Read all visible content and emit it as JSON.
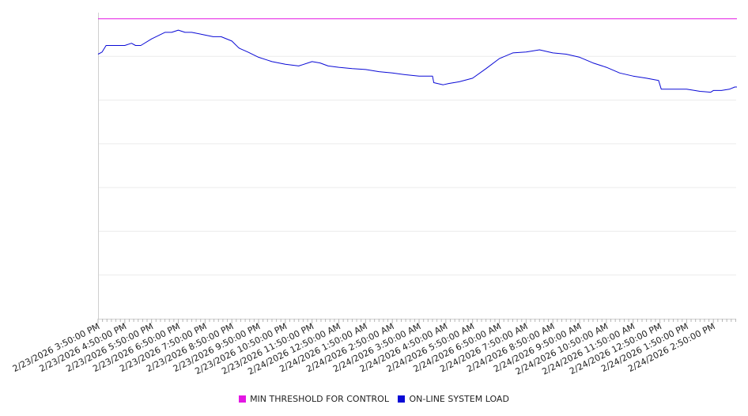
{
  "chart_data": {
    "type": "line",
    "title": "",
    "xlabel": "",
    "ylabel": "",
    "grid": true,
    "legend_position": "bottom",
    "x_tick_labels": [
      "2/23/2026 3:50:00 PM",
      "2/23/2026 4:50:00 PM",
      "2/23/2026 5:50:00 PM",
      "2/23/2026 6:50:00 PM",
      "2/23/2026 7:50:00 PM",
      "2/23/2026 8:50:00 PM",
      "2/23/2026 9:50:00 PM",
      "2/23/2026 10:50:00 PM",
      "2/23/2026 11:50:00 PM",
      "2/24/2026 12:50:00 AM",
      "2/24/2026 1:50:00 AM",
      "2/24/2026 2:50:00 AM",
      "2/24/2026 3:50:00 AM",
      "2/24/2026 4:50:00 AM",
      "2/24/2026 5:50:00 AM",
      "2/24/2026 6:50:00 AM",
      "2/24/2026 7:50:00 AM",
      "2/24/2026 8:50:00 AM",
      "2/24/2026 9:50:00 AM",
      "2/24/2026 10:50:00 AM",
      "2/24/2026 11:50:00 AM",
      "2/24/2026 12:50:00 PM",
      "2/24/2026 1:50:00 PM",
      "2/24/2026 2:50:00 PM"
    ],
    "y_range": [
      0,
      7
    ],
    "y_gridlines": [
      1,
      2,
      3,
      4,
      5,
      6,
      7
    ],
    "series": [
      {
        "name": "MIN THRESHOLD FOR CONTROL",
        "color": "#e317e3",
        "x": [
          0,
          23.88
        ],
        "y": [
          6.86,
          6.86
        ]
      },
      {
        "name": "ON-LINE SYSTEM LOAD",
        "color": "#0a0ad6",
        "x": [
          0,
          0.15,
          0.3,
          0.5,
          1.0,
          1.25,
          1.4,
          1.6,
          2.0,
          2.5,
          2.75,
          3.0,
          3.25,
          3.5,
          3.9,
          4.3,
          4.6,
          5.0,
          5.25,
          5.3,
          5.6,
          6.0,
          6.3,
          6.5,
          7.0,
          7.5,
          8.0,
          8.3,
          8.6,
          9.0,
          9.5,
          10.0,
          10.5,
          11.0,
          11.5,
          12.0,
          12.5,
          12.55,
          12.9,
          13.1,
          13.5,
          14.0,
          14.5,
          15.0,
          15.5,
          16.0,
          16.5,
          17.0,
          17.5,
          18.0,
          18.5,
          19.0,
          19.5,
          20.0,
          20.5,
          20.95,
          21.05,
          21.5,
          22.0,
          22.3,
          22.5,
          22.9,
          23.0,
          23.3,
          23.6,
          23.8,
          23.88
        ],
        "y": [
          6.05,
          6.1,
          6.25,
          6.25,
          6.25,
          6.3,
          6.25,
          6.25,
          6.4,
          6.55,
          6.55,
          6.6,
          6.55,
          6.55,
          6.5,
          6.45,
          6.45,
          6.35,
          6.2,
          6.18,
          6.1,
          5.98,
          5.92,
          5.88,
          5.82,
          5.78,
          5.88,
          5.85,
          5.78,
          5.75,
          5.72,
          5.7,
          5.65,
          5.62,
          5.58,
          5.55,
          5.55,
          5.4,
          5.35,
          5.38,
          5.42,
          5.5,
          5.72,
          5.95,
          6.08,
          6.1,
          6.15,
          6.08,
          6.05,
          5.98,
          5.85,
          5.75,
          5.62,
          5.55,
          5.5,
          5.45,
          5.25,
          5.25,
          5.25,
          5.22,
          5.2,
          5.18,
          5.22,
          5.22,
          5.25,
          5.3,
          5.3
        ]
      }
    ]
  }
}
